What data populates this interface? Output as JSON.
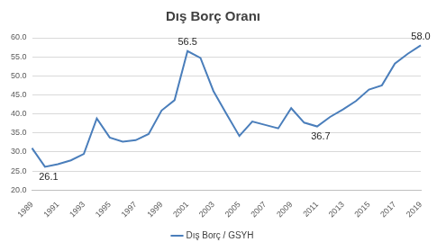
{
  "chart_data": {
    "type": "line",
    "title": "Dış Borç Oranı",
    "categories": [
      "1989",
      null,
      "1991",
      null,
      "1993",
      null,
      "1995",
      null,
      "1997",
      null,
      "1999",
      null,
      "2001",
      null,
      "2003",
      null,
      "2005",
      null,
      "2007",
      null,
      "2009",
      null,
      "2011",
      null,
      "2013",
      null,
      "2015",
      null,
      "2017",
      null,
      "2019"
    ],
    "series": [
      {
        "name": "Dış Borç / GSYH",
        "color": "#4a7ebb",
        "values": [
          31.0,
          26.1,
          26.8,
          27.8,
          29.5,
          38.8,
          33.8,
          32.7,
          33.1,
          34.7,
          40.9,
          43.6,
          56.5,
          54.7,
          46.0,
          40.0,
          34.2,
          38.0,
          37.1,
          36.2,
          41.5,
          37.7,
          36.7,
          39.2,
          41.2,
          43.4,
          46.4,
          47.5,
          53.2,
          55.8,
          58.0
        ]
      }
    ],
    "ylim": [
      20,
      60
    ],
    "yticks": [
      {
        "value": 20,
        "label": "20.0"
      },
      {
        "value": 25,
        "label": "25.0"
      },
      {
        "value": 30,
        "label": "30.0"
      },
      {
        "value": 35,
        "label": "35.0"
      },
      {
        "value": 40,
        "label": "40.0"
      },
      {
        "value": 45,
        "label": "45.0"
      },
      {
        "value": 50,
        "label": "50.0"
      },
      {
        "value": 55,
        "label": "55.0"
      },
      {
        "value": 60,
        "label": "60.0"
      }
    ],
    "grid": true,
    "legend": "bottom",
    "annotations": [
      {
        "text": "26.1",
        "index": 1,
        "y": 26.1
      },
      {
        "text": "56.5",
        "index": 12,
        "y": 56.5
      },
      {
        "text": "36.7",
        "index": 22,
        "y": 36.7
      },
      {
        "text": "58.0",
        "index": 30,
        "y": 58.0
      }
    ]
  }
}
